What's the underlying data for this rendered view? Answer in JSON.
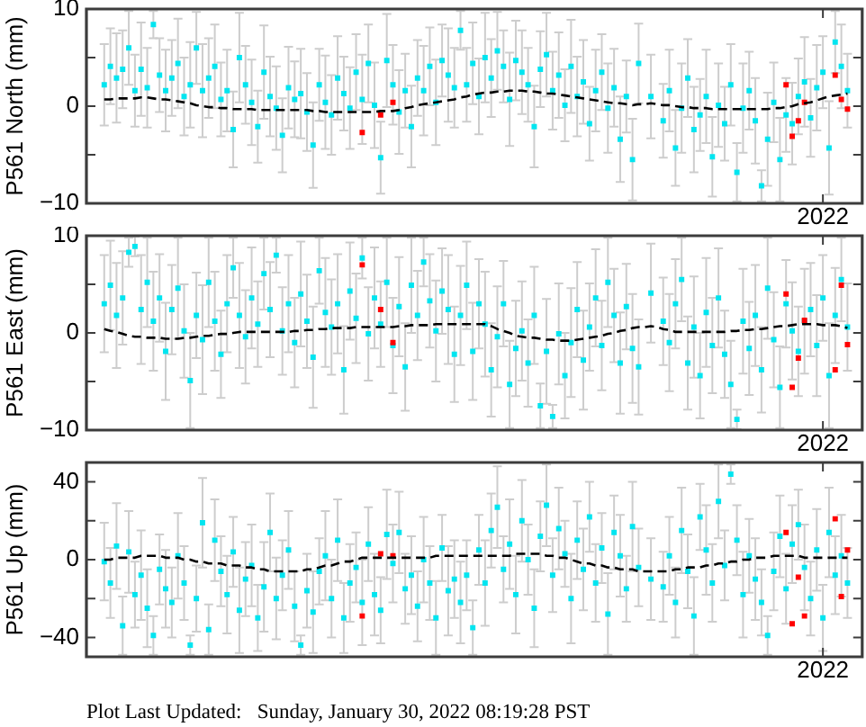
{
  "chart_data": [
    {
      "type": "scatter",
      "ylabel": "P561 North (mm)",
      "marker": "square",
      "categories": [
        null,
        null,
        null,
        null,
        null,
        null,
        null,
        null,
        null,
        null,
        null,
        null,
        null,
        null,
        null,
        null,
        null,
        null,
        null,
        null,
        null,
        null,
        null,
        null,
        null,
        null,
        null,
        null,
        null,
        null,
        null,
        null,
        null,
        null,
        null,
        null,
        null,
        null,
        null,
        null,
        null,
        null,
        null,
        null,
        null,
        null,
        null,
        null,
        null,
        null,
        null,
        null,
        null,
        null,
        null,
        null,
        null,
        null,
        null,
        null,
        null,
        null,
        null,
        null,
        null,
        null,
        null,
        null,
        null,
        null,
        null,
        null,
        null,
        null,
        null,
        null,
        null,
        null,
        null,
        null,
        null,
        null,
        null,
        null,
        null,
        null,
        null,
        null,
        null,
        null,
        null,
        null,
        null,
        null,
        null,
        null,
        null,
        null,
        null,
        null,
        null,
        null,
        null,
        null,
        null,
        null,
        null,
        null,
        null,
        null,
        null,
        null,
        null,
        null,
        null,
        null,
        null,
        "2022",
        null,
        null,
        null,
        null
      ],
      "ylim": [
        -10,
        10
      ],
      "yticks": [
        {
          "value": -10,
          "label": "−10"
        },
        {
          "value": -5,
          "label": null
        },
        0,
        {
          "value": 5,
          "label": null
        },
        10
      ],
      "series": [
        {
          "color": "#00e5f0",
          "values": [
            2.2,
            4.1,
            2.9,
            3.8,
            6.0,
            1.6,
            3.8,
            1.9,
            8.4,
            3.2,
            1.6,
            2.9,
            4.4,
            1.0,
            2.2,
            6.0,
            1.6,
            2.9,
            4.1,
            0.7,
            1.6,
            -2.4,
            5.0,
            2.2,
            0.4,
            -2.1,
            3.5,
            1.0,
            -0.2,
            -3.0,
            1.9,
            0.7,
            1.3,
            -0.6,
            -4.0,
            2.2,
            0.4,
            -0.9,
            2.9,
            1.3,
            -0.2,
            3.5,
            0.7,
            4.4,
            0.1,
            -5.3,
            4.7,
            2.2,
            -0.6,
            1.6,
            -2.1,
            2.9,
            1.6,
            4.1,
            0.4,
            4.7,
            3.2,
            1.9,
            7.8,
            2.2,
            4.4,
            1.0,
            5.0,
            2.9,
            5.7,
            4.1,
            0.7,
            4.7,
            3.5,
            2.2,
            -2.1,
            3.8,
            5.3,
            1.6,
            3.2,
            0.1,
            4.1,
            1.0,
            2.5,
            -1.8,
            1.6,
            3.5,
            -0.2,
            1.9,
            -3.4,
            1.0,
            -5.5,
            4.4,
            null,
            1.0,
            null,
            -1.5,
            1.6,
            -4.3,
            -0.2,
            2.9,
            -2.4,
            -0.9,
            1.0,
            -5.2,
            0.1,
            -1.8,
            2.2,
            -6.8,
            -0.2,
            1.6,
            -1.5,
            -8.2,
            -3.4,
            0.4,
            -5.5,
            -0.9,
            -1.8,
            1.0,
            2.5,
            -1.2,
            1.9,
            3.5,
            -4.3,
            6.6,
            4.1,
            1.6
          ],
          "errors": [
            4.2,
            3.9,
            4.6,
            4.0,
            3.8,
            3.7,
            4.8,
            4.1,
            1.4,
            3.8,
            4.2,
            3.9,
            4.6,
            4.0,
            4.4,
            3.7,
            4.8,
            4.1,
            4.3,
            3.8,
            4.2,
            3.9,
            4.6,
            4.0,
            4.4,
            3.7,
            4.8,
            4.1,
            4.3,
            3.8,
            4.2,
            3.9,
            4.6,
            4.0,
            4.4,
            3.7,
            4.8,
            4.1,
            4.3,
            3.8,
            4.2,
            3.9,
            4.6,
            4.0,
            4.4,
            3.7,
            4.8,
            4.1,
            4.3,
            3.8,
            4.2,
            3.9,
            4.6,
            4.0,
            4.4,
            3.7,
            4.8,
            4.1,
            2.0,
            3.8,
            4.2,
            3.9,
            4.6,
            4.0,
            4.0,
            3.7,
            4.8,
            4.1,
            4.3,
            3.8,
            4.2,
            3.9,
            4.3,
            4.0,
            4.4,
            3.7,
            4.8,
            4.1,
            4.3,
            3.8,
            4.2,
            3.9,
            4.6,
            4.0,
            4.4,
            3.7,
            4.2,
            4.1,
            null,
            4.3,
            null,
            3.8,
            4.2,
            3.9,
            4.6,
            4.0,
            4.4,
            3.7,
            4.8,
            4.1,
            4.3,
            3.8,
            4.2,
            3.0,
            4.6,
            4.0,
            4.4,
            1.6,
            4.8,
            4.1,
            4.3,
            3.8,
            4.2,
            3.9,
            4.6,
            4.0,
            4.4,
            3.7,
            4.8,
            3.2,
            4.3,
            3.8
          ]
        },
        {
          "color": "#ff0000",
          "values": [
            null,
            null,
            null,
            null,
            null,
            null,
            null,
            null,
            null,
            null,
            null,
            null,
            null,
            null,
            null,
            null,
            null,
            null,
            null,
            null,
            null,
            null,
            null,
            null,
            null,
            null,
            null,
            null,
            null,
            null,
            null,
            null,
            null,
            null,
            null,
            null,
            null,
            null,
            null,
            null,
            null,
            null,
            -2.7,
            null,
            null,
            -0.9,
            null,
            0.4,
            null,
            null,
            null,
            null,
            null,
            null,
            null,
            null,
            null,
            null,
            null,
            null,
            null,
            null,
            null,
            null,
            null,
            null,
            null,
            null,
            null,
            null,
            null,
            null,
            null,
            null,
            null,
            null,
            null,
            null,
            null,
            null,
            null,
            null,
            null,
            null,
            null,
            null,
            null,
            null,
            null,
            null,
            null,
            null,
            null,
            null,
            null,
            null,
            null,
            null,
            null,
            null,
            null,
            null,
            null,
            null,
            null,
            null,
            null,
            null,
            null,
            null,
            null,
            2.2,
            -3.1,
            -1.5,
            0.4,
            null,
            null,
            null,
            null,
            3.2,
            0.7,
            -0.3
          ]
        },
        {
          "type": "line",
          "color": "#000000",
          "line_style": "dashed",
          "marker": "none",
          "values": [
            0.7,
            0.7,
            0.8,
            0.8,
            0.8,
            0.8,
            0.9,
            0.9,
            0.8,
            0.7,
            0.7,
            0.6,
            0.5,
            0.4,
            0.3,
            0.1,
            0.0,
            -0.1,
            -0.1,
            -0.2,
            -0.2,
            -0.3,
            -0.3,
            -0.3,
            -0.3,
            -0.4,
            -0.4,
            -0.4,
            -0.4,
            -0.4,
            -0.4,
            -0.4,
            -0.4,
            -0.4,
            -0.5,
            -0.5,
            -0.6,
            -0.6,
            -0.6,
            -0.6,
            -0.6,
            -0.6,
            -0.6,
            -0.6,
            -0.6,
            -0.5,
            -0.5,
            -0.5,
            -0.4,
            -0.2,
            -0.1,
            0.1,
            0.2,
            0.3,
            0.4,
            0.5,
            0.6,
            0.7,
            0.9,
            1.0,
            1.2,
            1.3,
            1.4,
            1.4,
            1.5,
            1.5,
            1.6,
            1.6,
            1.6,
            1.5,
            1.5,
            1.4,
            1.3,
            1.3,
            1.2,
            1.1,
            1.0,
            0.9,
            0.8,
            0.7,
            0.6,
            0.5,
            0.4,
            0.3,
            0.3,
            0.2,
            0.1,
            0.2,
            0.2,
            0.3,
            0.2,
            0.1,
            0.1,
            0.0,
            -0.1,
            -0.1,
            -0.2,
            -0.2,
            -0.2,
            -0.3,
            -0.3,
            -0.3,
            -0.3,
            -0.3,
            -0.3,
            -0.3,
            -0.3,
            -0.3,
            -0.3,
            -0.2,
            -0.2,
            -0.1,
            0.0,
            0.2,
            0.3,
            0.4,
            0.6,
            0.8,
            1.0,
            1.1,
            1.2,
            1.3
          ]
        }
      ]
    },
    {
      "type": "scatter",
      "ylabel": "P561 East (mm)",
      "marker": "square",
      "categories": [
        null,
        null,
        null,
        null,
        null,
        null,
        null,
        null,
        null,
        null,
        null,
        null,
        null,
        null,
        null,
        null,
        null,
        null,
        null,
        null,
        null,
        null,
        null,
        null,
        null,
        null,
        null,
        null,
        null,
        null,
        null,
        null,
        null,
        null,
        null,
        null,
        null,
        null,
        null,
        null,
        null,
        null,
        null,
        null,
        null,
        null,
        null,
        null,
        null,
        null,
        null,
        null,
        null,
        null,
        null,
        null,
        null,
        null,
        null,
        null,
        null,
        null,
        null,
        null,
        null,
        null,
        null,
        null,
        null,
        null,
        null,
        null,
        null,
        null,
        null,
        null,
        null,
        null,
        null,
        null,
        null,
        null,
        null,
        null,
        null,
        null,
        null,
        null,
        null,
        null,
        null,
        null,
        null,
        null,
        null,
        null,
        null,
        null,
        null,
        null,
        null,
        null,
        null,
        null,
        null,
        null,
        null,
        null,
        null,
        null,
        null,
        null,
        null,
        null,
        null,
        null,
        null,
        "2022",
        null,
        null,
        null,
        null
      ],
      "ylim": [
        -10,
        10
      ],
      "yticks": [
        {
          "value": -10,
          "label": "−10"
        },
        {
          "value": -5,
          "label": null
        },
        0,
        {
          "value": 5,
          "label": null
        },
        10
      ],
      "series": [
        {
          "color": "#00e5f0",
          "values": [
            3.0,
            4.9,
            1.8,
            3.6,
            8.3,
            8.9,
            2.4,
            5.2,
            1.2,
            3.6,
            -1.9,
            2.4,
            4.6,
            0.2,
            -4.9,
            1.8,
            -0.7,
            5.2,
            1.2,
            -2.2,
            3.0,
            6.7,
            1.8,
            -0.4,
            3.6,
            0.9,
            6.1,
            2.4,
            8.0,
            0.2,
            3.0,
            -1.0,
            4.0,
            1.2,
            -2.5,
            6.4,
            2.1,
            0.6,
            3.0,
            -3.8,
            4.3,
            1.5,
            7.7,
            -0.1,
            3.6,
            0.9,
            5.2,
            -1.3,
            2.7,
            -3.5,
            4.9,
            1.8,
            7.3,
            3.3,
            0.2,
            4.3,
            2.4,
            -2.2,
            1.8,
            4.9,
            -1.9,
            3.0,
            0.9,
            -3.8,
            -0.4,
            3.0,
            -5.3,
            -1.6,
            0.2,
            -3.1,
            1.8,
            -7.5,
            -1.9,
            -8.6,
            -0.1,
            -4.4,
            -1.0,
            2.4,
            -2.8,
            0.6,
            3.6,
            -1.3,
            5.2,
            1.8,
            -3.1,
            2.7,
            -1.6,
            -3.5,
            null,
            4.1,
            null,
            1.2,
            -1.0,
            3.0,
            5.5,
            -3.1,
            0.6,
            -4.4,
            2.1,
            -1.3,
            3.6,
            -2.2,
            -5.3,
            -8.9,
            1.2,
            -1.6,
            1.8,
            -3.8,
            4.6,
            -0.7,
            -5.6,
            3.0,
            0.2,
            -1.9,
            1.2,
            2.4,
            -1.3,
            3.6,
            -4.4,
            1.8,
            5.5,
            0.6
          ],
          "errors": [
            5.0,
            4.6,
            5.4,
            4.8,
            1.5,
            1.0,
            5.6,
            4.6,
            5.1,
            4.5,
            5.0,
            4.6,
            5.2,
            4.8,
            4.9,
            4.4,
            5.6,
            4.6,
            5.1,
            4.5,
            5.0,
            3.1,
            5.4,
            4.8,
            5.2,
            4.4,
            3.7,
            4.9,
            1.8,
            4.5,
            5.0,
            4.6,
            5.4,
            4.8,
            5.2,
            3.4,
            5.6,
            4.9,
            5.1,
            4.5,
            5.0,
            4.6,
            2.1,
            4.8,
            5.2,
            4.4,
            4.6,
            4.9,
            5.1,
            4.5,
            4.9,
            4.6,
            2.5,
            4.8,
            5.2,
            4.4,
            5.6,
            4.9,
            5.1,
            4.5,
            5.0,
            4.6,
            5.4,
            4.8,
            5.2,
            4.4,
            4.5,
            4.9,
            5.1,
            4.5,
            5.0,
            2.3,
            5.4,
            1.2,
            5.2,
            4.4,
            5.6,
            4.9,
            5.1,
            4.5,
            5.0,
            4.6,
            4.6,
            4.8,
            5.2,
            4.4,
            5.6,
            4.9,
            null,
            5.1,
            null,
            4.5,
            5.0,
            4.6,
            4.3,
            4.8,
            5.2,
            4.4,
            5.6,
            4.9,
            5.1,
            4.5,
            4.5,
            1.0,
            5.4,
            4.8,
            5.2,
            4.4,
            5.2,
            4.9,
            4.2,
            4.5,
            5.0,
            4.6,
            5.4,
            4.8,
            5.2,
            4.4,
            5.4,
            4.9,
            4.3,
            4.5
          ]
        },
        {
          "color": "#ff0000",
          "values": [
            null,
            null,
            null,
            null,
            null,
            null,
            null,
            null,
            null,
            null,
            null,
            null,
            null,
            null,
            null,
            null,
            null,
            null,
            null,
            null,
            null,
            null,
            null,
            null,
            null,
            null,
            null,
            null,
            null,
            null,
            null,
            null,
            null,
            null,
            null,
            null,
            null,
            null,
            null,
            null,
            null,
            null,
            7.0,
            null,
            null,
            2.4,
            null,
            -1.0,
            null,
            null,
            null,
            null,
            null,
            null,
            null,
            null,
            null,
            null,
            null,
            null,
            null,
            null,
            null,
            null,
            null,
            null,
            null,
            null,
            null,
            null,
            null,
            null,
            null,
            null,
            null,
            null,
            null,
            null,
            null,
            null,
            null,
            null,
            null,
            null,
            null,
            null,
            null,
            null,
            null,
            null,
            null,
            null,
            null,
            null,
            null,
            null,
            null,
            null,
            null,
            null,
            null,
            null,
            null,
            null,
            null,
            null,
            null,
            null,
            null,
            null,
            null,
            4.0,
            -5.6,
            -2.6,
            1.3,
            null,
            null,
            null,
            null,
            -3.8,
            4.9,
            -1.2
          ]
        },
        {
          "type": "line",
          "color": "#000000",
          "line_style": "dashed",
          "marker": "none",
          "values": [
            0.4,
            0.2,
            0.1,
            -0.1,
            -0.3,
            -0.4,
            -0.4,
            -0.5,
            -0.5,
            -0.5,
            -0.6,
            -0.6,
            -0.6,
            -0.5,
            -0.5,
            -0.4,
            -0.3,
            -0.3,
            -0.2,
            -0.1,
            -0.1,
            0.0,
            0.1,
            0.1,
            0.1,
            0.1,
            0.1,
            0.1,
            0.1,
            0.1,
            0.1,
            0.2,
            0.2,
            0.3,
            0.3,
            0.4,
            0.4,
            0.5,
            0.5,
            0.5,
            0.5,
            0.6,
            0.6,
            0.6,
            0.6,
            0.6,
            0.6,
            0.6,
            0.7,
            0.7,
            0.8,
            0.8,
            0.8,
            0.8,
            0.9,
            0.9,
            0.9,
            0.9,
            0.9,
            0.9,
            0.9,
            0.9,
            0.9,
            0.7,
            0.4,
            0.2,
            0.0,
            -0.3,
            -0.4,
            -0.5,
            -0.5,
            -0.6,
            -0.7,
            -0.7,
            -0.8,
            -0.8,
            -0.8,
            -0.7,
            -0.6,
            -0.5,
            -0.4,
            -0.3,
            -0.1,
            0.0,
            0.2,
            0.3,
            0.5,
            0.6,
            0.6,
            0.7,
            0.6,
            0.4,
            0.3,
            0.1,
            0.1,
            0.1,
            0.1,
            0.1,
            0.1,
            0.1,
            0.1,
            0.1,
            0.2,
            0.2,
            0.3,
            0.3,
            0.4,
            0.4,
            0.5,
            0.6,
            0.7,
            0.7,
            0.8,
            0.9,
            0.9,
            0.9,
            0.9,
            0.8,
            0.8,
            0.8,
            0.7,
            0.5
          ]
        }
      ]
    },
    {
      "type": "scatter",
      "ylabel": "P561 Up (mm)",
      "marker": "square",
      "categories": [
        null,
        null,
        null,
        null,
        null,
        null,
        null,
        null,
        null,
        null,
        null,
        null,
        null,
        null,
        null,
        null,
        null,
        null,
        null,
        null,
        null,
        null,
        null,
        null,
        null,
        null,
        null,
        null,
        null,
        null,
        null,
        null,
        null,
        null,
        null,
        null,
        null,
        null,
        null,
        null,
        null,
        null,
        null,
        null,
        null,
        null,
        null,
        null,
        null,
        null,
        null,
        null,
        null,
        null,
        null,
        null,
        null,
        null,
        null,
        null,
        null,
        null,
        null,
        null,
        null,
        null,
        null,
        null,
        null,
        null,
        null,
        null,
        null,
        null,
        null,
        null,
        null,
        null,
        null,
        null,
        null,
        null,
        null,
        null,
        null,
        null,
        null,
        null,
        null,
        null,
        null,
        null,
        null,
        null,
        null,
        null,
        null,
        null,
        null,
        null,
        null,
        null,
        null,
        null,
        null,
        null,
        null,
        null,
        null,
        null,
        null,
        null,
        null,
        null,
        null,
        null,
        null,
        "2022",
        null,
        null,
        null,
        null
      ],
      "ylim": [
        -50,
        50
      ],
      "yticks": [
        {
          "value": -40,
          "label": "−40"
        },
        {
          "value": -20,
          "label": null
        },
        0,
        {
          "value": 20,
          "label": null
        },
        40
      ],
      "annotations": [
        "Plot Last Updated:   Sunday, January 30, 2022 08:19:28 PST"
      ],
      "series": [
        {
          "color": "#00e5f0",
          "values": [
            -1,
            -12,
            7,
            -34,
            4,
            -18,
            -8,
            -25,
            -39,
            -5,
            -15,
            -22,
            2,
            -12,
            -44,
            -20,
            19,
            -36,
            10,
            -6,
            -18,
            4,
            -26,
            -10,
            -3,
            -30,
            -14,
            14,
            -20,
            -8,
            5,
            -24,
            -44,
            -16,
            -27,
            -6,
            2,
            -20,
            10,
            -30,
            -12,
            -4,
            -22,
            8,
            -18,
            -26,
            13,
            -2,
            14,
            -15,
            -8,
            -24,
            0,
            -12,
            -30,
            6,
            -16,
            -10,
            -22,
            -8,
            -35,
            5,
            -12,
            15,
            27,
            -5,
            8,
            -18,
            20,
            0,
            -25,
            12,
            28,
            -8,
            16,
            3,
            -20,
            10,
            -5,
            22,
            -12,
            6,
            -28,
            14,
            2,
            -15,
            17,
            -4,
            null,
            -10,
            null,
            -14,
            2,
            -22,
            15,
            -6,
            -29,
            22,
            5,
            -12,
            30,
            -3,
            44,
            10,
            -18,
            2,
            -10,
            -22,
            -39,
            -6,
            12,
            -15,
            8,
            18,
            -4,
            -20,
            5,
            -30,
            14,
            -8,
            2,
            -12
          ],
          "errors": [
            20,
            18,
            22,
            15,
            21,
            17,
            23,
            20,
            10,
            18,
            20,
            18,
            22,
            19,
            5,
            17,
            23,
            13,
            21,
            18,
            20,
            18,
            22,
            19,
            21,
            17,
            23,
            20,
            21,
            18,
            20,
            18,
            5,
            19,
            21,
            17,
            23,
            20,
            21,
            18,
            20,
            18,
            22,
            19,
            21,
            17,
            23,
            20,
            21,
            18,
            20,
            18,
            22,
            19,
            19,
            17,
            23,
            20,
            21,
            18,
            14,
            18,
            22,
            19,
            21,
            17,
            23,
            20,
            21,
            18,
            20,
            18,
            21,
            19,
            21,
            17,
            23,
            20,
            21,
            18,
            20,
            18,
            21,
            19,
            21,
            17,
            23,
            20,
            null,
            21,
            null,
            18,
            20,
            18,
            22,
            19,
            20,
            17,
            23,
            20,
            19,
            18,
            5,
            18,
            22,
            19,
            21,
            17,
            10,
            20,
            21,
            18,
            20,
            18,
            22,
            19,
            21,
            17,
            23,
            20,
            21,
            18
          ]
        },
        {
          "color": "#ff0000",
          "values": [
            null,
            null,
            null,
            null,
            null,
            null,
            null,
            null,
            null,
            null,
            null,
            null,
            null,
            null,
            null,
            null,
            null,
            null,
            null,
            null,
            null,
            null,
            null,
            null,
            null,
            null,
            null,
            null,
            null,
            null,
            null,
            null,
            null,
            null,
            null,
            null,
            null,
            null,
            null,
            null,
            null,
            null,
            -29,
            null,
            null,
            3,
            null,
            2,
            null,
            null,
            null,
            null,
            null,
            null,
            null,
            null,
            null,
            null,
            null,
            null,
            null,
            null,
            null,
            null,
            null,
            null,
            null,
            null,
            null,
            null,
            null,
            null,
            null,
            null,
            null,
            null,
            null,
            null,
            null,
            null,
            null,
            null,
            null,
            null,
            null,
            null,
            null,
            null,
            null,
            null,
            null,
            null,
            null,
            null,
            null,
            null,
            null,
            null,
            null,
            null,
            null,
            null,
            null,
            null,
            null,
            null,
            null,
            null,
            null,
            null,
            null,
            14,
            -33,
            -9,
            -29,
            null,
            null,
            null,
            null,
            21,
            -19,
            5
          ]
        },
        {
          "type": "line",
          "color": "#000000",
          "line_style": "dashed",
          "marker": "none",
          "values": [
            0,
            0,
            1,
            1,
            1,
            1,
            2,
            2,
            2,
            2,
            1,
            1,
            1,
            0,
            0,
            -1,
            -1,
            -2,
            -2,
            -2,
            -3,
            -3,
            -3,
            -4,
            -4,
            -5,
            -5,
            -6,
            -6,
            -6,
            -6,
            -6,
            -6,
            -5,
            -5,
            -4,
            -3,
            -3,
            -2,
            -1,
            -1,
            0,
            1,
            1,
            1,
            1,
            1,
            1,
            1,
            1,
            1,
            1,
            1,
            1,
            2,
            2,
            2,
            2,
            2,
            2,
            2,
            2,
            2,
            2,
            2,
            2,
            2,
            3,
            3,
            3,
            3,
            3,
            2,
            2,
            1,
            1,
            0,
            -1,
            -2,
            -2,
            -3,
            -3,
            -4,
            -4,
            -5,
            -5,
            -5,
            -6,
            -6,
            -6,
            -6,
            -6,
            -6,
            -5,
            -5,
            -4,
            -4,
            -4,
            -3,
            -3,
            -2,
            -2,
            -1,
            -1,
            0,
            0,
            1,
            1,
            1,
            2,
            2,
            2,
            2,
            2,
            1,
            1,
            1,
            1,
            1,
            1,
            1,
            1
          ]
        }
      ]
    }
  ]
}
